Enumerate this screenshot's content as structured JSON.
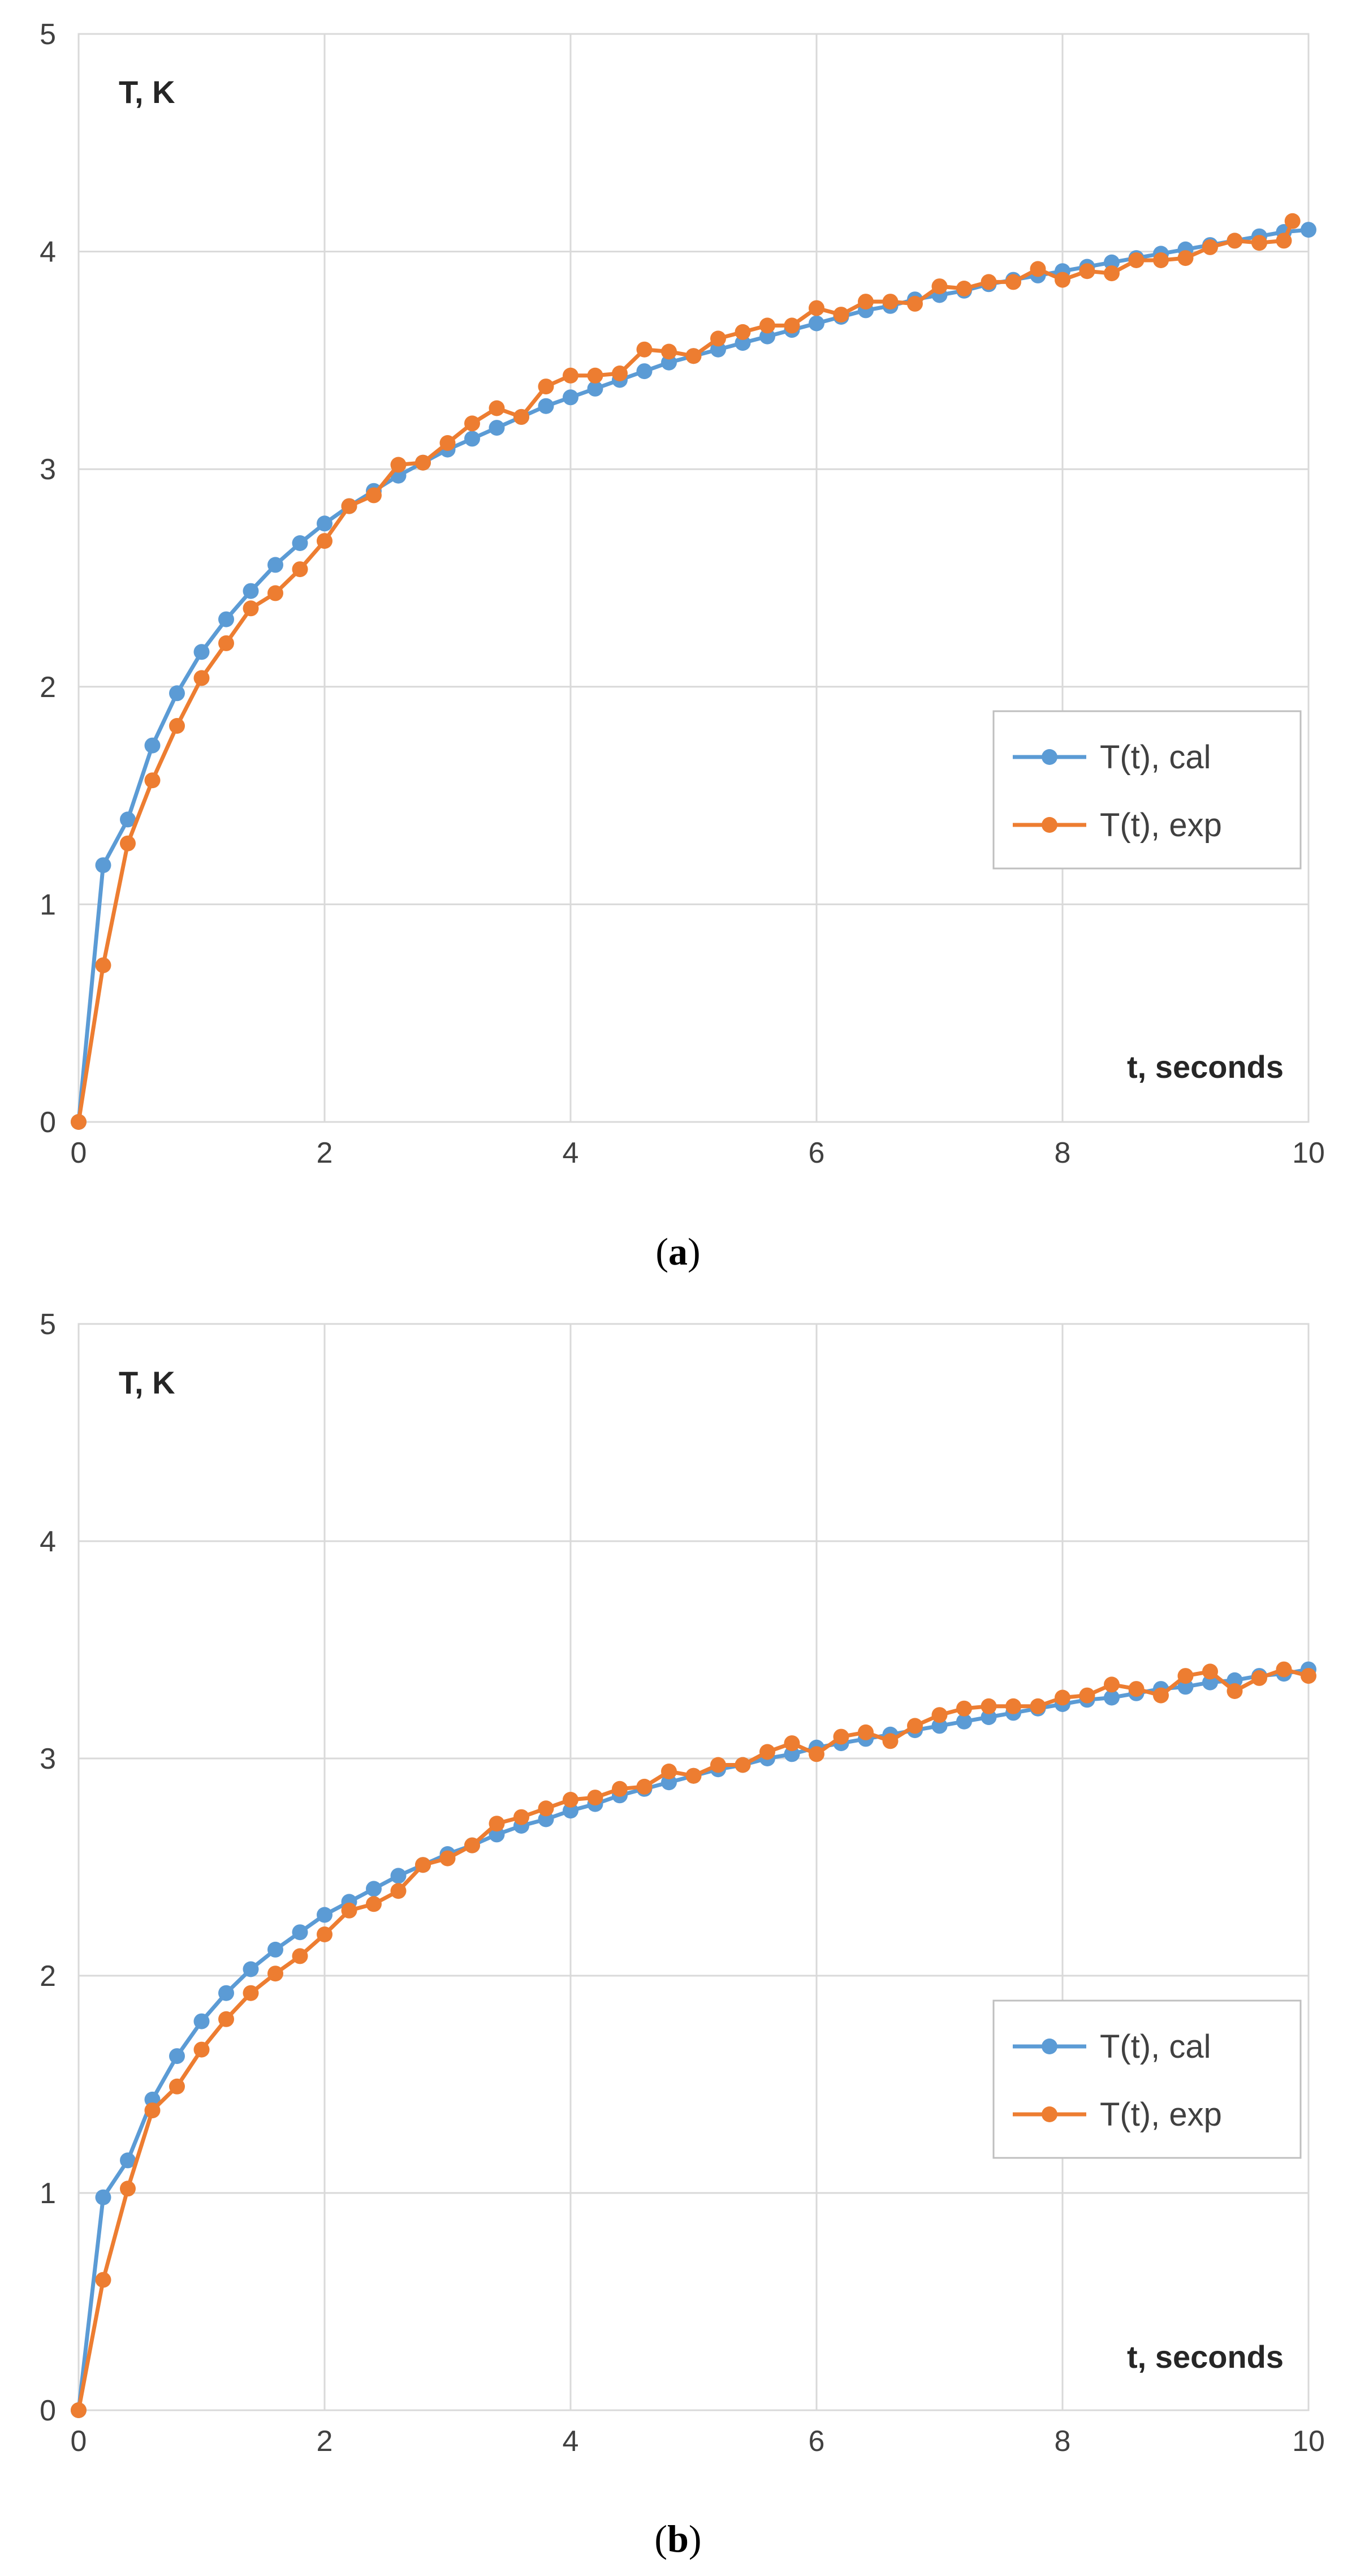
{
  "chart_data": [
    {
      "type": "line",
      "caption": "(a)",
      "caption_letter": "a",
      "title": "",
      "xlabel": "t, seconds",
      "ylabel": "T, K",
      "xlim": [
        0,
        10
      ],
      "ylim": [
        0,
        5
      ],
      "xticks": [
        "0",
        "2",
        "4",
        "6",
        "8",
        "10"
      ],
      "yticks": [
        "0",
        "1",
        "2",
        "3",
        "4",
        "5"
      ],
      "grid": true,
      "legend_position": "center-right",
      "series": [
        {
          "name": "T(t), cal",
          "color": "#5B9BD5",
          "x": [
            0,
            0.2,
            0.4,
            0.6,
            0.8,
            1.0,
            1.2,
            1.4,
            1.6,
            1.8,
            2.0,
            2.2,
            2.4,
            2.6,
            2.8,
            3.0,
            3.2,
            3.4,
            3.6,
            3.8,
            4.0,
            4.2,
            4.4,
            4.6,
            4.8,
            5.0,
            5.2,
            5.4,
            5.6,
            5.8,
            6.0,
            6.2,
            6.4,
            6.6,
            6.8,
            7.0,
            7.2,
            7.4,
            7.6,
            7.8,
            8.0,
            8.2,
            8.4,
            8.6,
            8.8,
            9.0,
            9.2,
            9.4,
            9.6,
            9.8,
            10.0
          ],
          "y": [
            0,
            1.18,
            1.39,
            1.73,
            1.97,
            2.16,
            2.31,
            2.44,
            2.56,
            2.66,
            2.75,
            2.83,
            2.9,
            2.97,
            3.03,
            3.09,
            3.14,
            3.19,
            3.24,
            3.29,
            3.33,
            3.37,
            3.41,
            3.45,
            3.49,
            3.52,
            3.55,
            3.58,
            3.61,
            3.64,
            3.67,
            3.7,
            3.73,
            3.75,
            3.78,
            3.8,
            3.82,
            3.85,
            3.87,
            3.89,
            3.91,
            3.93,
            3.95,
            3.97,
            3.99,
            4.01,
            4.03,
            4.05,
            4.07,
            4.09,
            4.1
          ]
        },
        {
          "name": "T(t), exp",
          "color": "#ED7D31",
          "x": [
            0,
            0.2,
            0.4,
            0.6,
            0.8,
            1.0,
            1.2,
            1.4,
            1.6,
            1.8,
            2.0,
            2.2,
            2.4,
            2.6,
            2.8,
            3.0,
            3.2,
            3.4,
            3.6,
            3.8,
            4.0,
            4.2,
            4.4,
            4.6,
            4.8,
            5.0,
            5.2,
            5.4,
            5.6,
            5.8,
            6.0,
            6.2,
            6.4,
            6.6,
            6.8,
            7.0,
            7.2,
            7.4,
            7.6,
            7.8,
            8.0,
            8.2,
            8.4,
            8.6,
            8.8,
            9.0,
            9.2,
            9.4,
            9.6,
            9.8,
            9.87
          ],
          "y": [
            0,
            0.72,
            1.28,
            1.57,
            1.82,
            2.04,
            2.2,
            2.36,
            2.43,
            2.54,
            2.67,
            2.83,
            2.88,
            3.02,
            3.03,
            3.12,
            3.21,
            3.28,
            3.24,
            3.38,
            3.43,
            3.43,
            3.44,
            3.55,
            3.54,
            3.52,
            3.6,
            3.63,
            3.66,
            3.66,
            3.74,
            3.71,
            3.77,
            3.77,
            3.76,
            3.84,
            3.83,
            3.86,
            3.86,
            3.92,
            3.87,
            3.91,
            3.9,
            3.96,
            3.96,
            3.97,
            4.02,
            4.05,
            4.04,
            4.05,
            4.14
          ]
        }
      ]
    },
    {
      "type": "line",
      "caption": "(b)",
      "caption_letter": "b",
      "title": "",
      "xlabel": "t, seconds",
      "ylabel": "T, K",
      "xlim": [
        0,
        10
      ],
      "ylim": [
        0,
        5
      ],
      "xticks": [
        "0",
        "2",
        "4",
        "6",
        "8",
        "10"
      ],
      "yticks": [
        "0",
        "1",
        "2",
        "3",
        "4",
        "5"
      ],
      "grid": true,
      "legend_position": "center-right",
      "series": [
        {
          "name": "T(t), cal",
          "color": "#5B9BD5",
          "x": [
            0,
            0.2,
            0.4,
            0.6,
            0.8,
            1.0,
            1.2,
            1.4,
            1.6,
            1.8,
            2.0,
            2.2,
            2.4,
            2.6,
            2.8,
            3.0,
            3.2,
            3.4,
            3.6,
            3.8,
            4.0,
            4.2,
            4.4,
            4.6,
            4.8,
            5.0,
            5.2,
            5.4,
            5.6,
            5.8,
            6.0,
            6.2,
            6.4,
            6.6,
            6.8,
            7.0,
            7.2,
            7.4,
            7.6,
            7.8,
            8.0,
            8.2,
            8.4,
            8.6,
            8.8,
            9.0,
            9.2,
            9.4,
            9.6,
            9.8,
            10.0
          ],
          "y": [
            0,
            0.98,
            1.15,
            1.43,
            1.63,
            1.79,
            1.92,
            2.03,
            2.12,
            2.2,
            2.28,
            2.34,
            2.4,
            2.46,
            2.51,
            2.56,
            2.6,
            2.65,
            2.69,
            2.72,
            2.76,
            2.79,
            2.83,
            2.86,
            2.89,
            2.92,
            2.95,
            2.97,
            3.0,
            3.02,
            3.05,
            3.07,
            3.09,
            3.11,
            3.13,
            3.15,
            3.17,
            3.19,
            3.21,
            3.23,
            3.25,
            3.27,
            3.28,
            3.3,
            3.32,
            3.33,
            3.35,
            3.36,
            3.38,
            3.39,
            3.41
          ]
        },
        {
          "name": "T(t), exp",
          "color": "#ED7D31",
          "x": [
            0,
            0.2,
            0.4,
            0.6,
            0.8,
            1.0,
            1.2,
            1.4,
            1.6,
            1.8,
            2.0,
            2.2,
            2.4,
            2.6,
            2.8,
            3.0,
            3.2,
            3.4,
            3.6,
            3.8,
            4.0,
            4.2,
            4.4,
            4.6,
            4.8,
            5.0,
            5.2,
            5.4,
            5.6,
            5.8,
            6.0,
            6.2,
            6.4,
            6.6,
            6.8,
            7.0,
            7.2,
            7.4,
            7.6,
            7.8,
            8.0,
            8.2,
            8.4,
            8.6,
            8.8,
            9.0,
            9.2,
            9.4,
            9.6,
            9.8,
            10.0
          ],
          "y": [
            0,
            0.6,
            1.02,
            1.38,
            1.49,
            1.66,
            1.8,
            1.92,
            2.01,
            2.09,
            2.19,
            2.3,
            2.33,
            2.39,
            2.51,
            2.54,
            2.6,
            2.7,
            2.73,
            2.77,
            2.81,
            2.82,
            2.86,
            2.87,
            2.94,
            2.92,
            2.97,
            2.97,
            3.03,
            3.07,
            3.02,
            3.1,
            3.12,
            3.08,
            3.15,
            3.2,
            3.23,
            3.24,
            3.24,
            3.24,
            3.28,
            3.29,
            3.34,
            3.32,
            3.29,
            3.38,
            3.4,
            3.31,
            3.37,
            3.41,
            3.38
          ]
        }
      ]
    }
  ]
}
